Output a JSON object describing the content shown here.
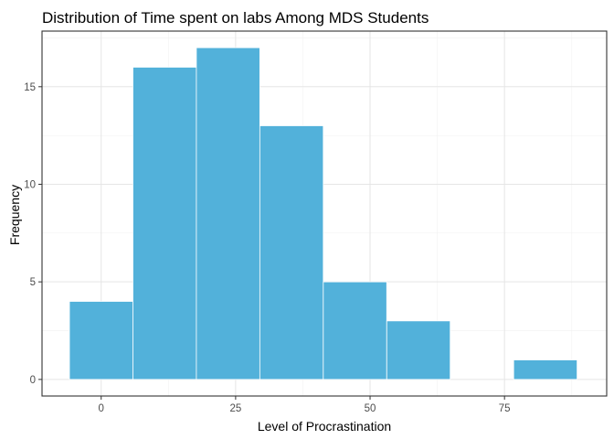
{
  "chart_data": {
    "type": "histogram",
    "title": "Distribution of Time spent on labs Among MDS Students",
    "xlabel": "Level of Procrastination",
    "ylabel": "Frequency",
    "bins": [
      {
        "x0": -5.9,
        "x1": 5.9,
        "count": 4
      },
      {
        "x0": 5.9,
        "x1": 17.7,
        "count": 16
      },
      {
        "x0": 17.7,
        "x1": 29.5,
        "count": 17
      },
      {
        "x0": 29.5,
        "x1": 41.3,
        "count": 13
      },
      {
        "x0": 41.3,
        "x1": 53.1,
        "count": 5
      },
      {
        "x0": 53.1,
        "x1": 64.9,
        "count": 3
      },
      {
        "x0": 64.9,
        "x1": 76.7,
        "count": 0
      },
      {
        "x0": 76.7,
        "x1": 88.5,
        "count": 1
      }
    ],
    "x_ticks": [
      0,
      25,
      50,
      75
    ],
    "x_tick_labels": [
      "0",
      "25",
      "50",
      "75"
    ],
    "y_ticks": [
      0,
      5,
      10,
      15
    ],
    "y_tick_labels": [
      "0",
      "5",
      "10",
      "15"
    ],
    "xlim": [
      -11,
      94
    ],
    "ylim": [
      -0.85,
      17.85
    ],
    "grid": true,
    "bar_color": "#52b1da",
    "bar_edge_color": "#ffffff"
  }
}
